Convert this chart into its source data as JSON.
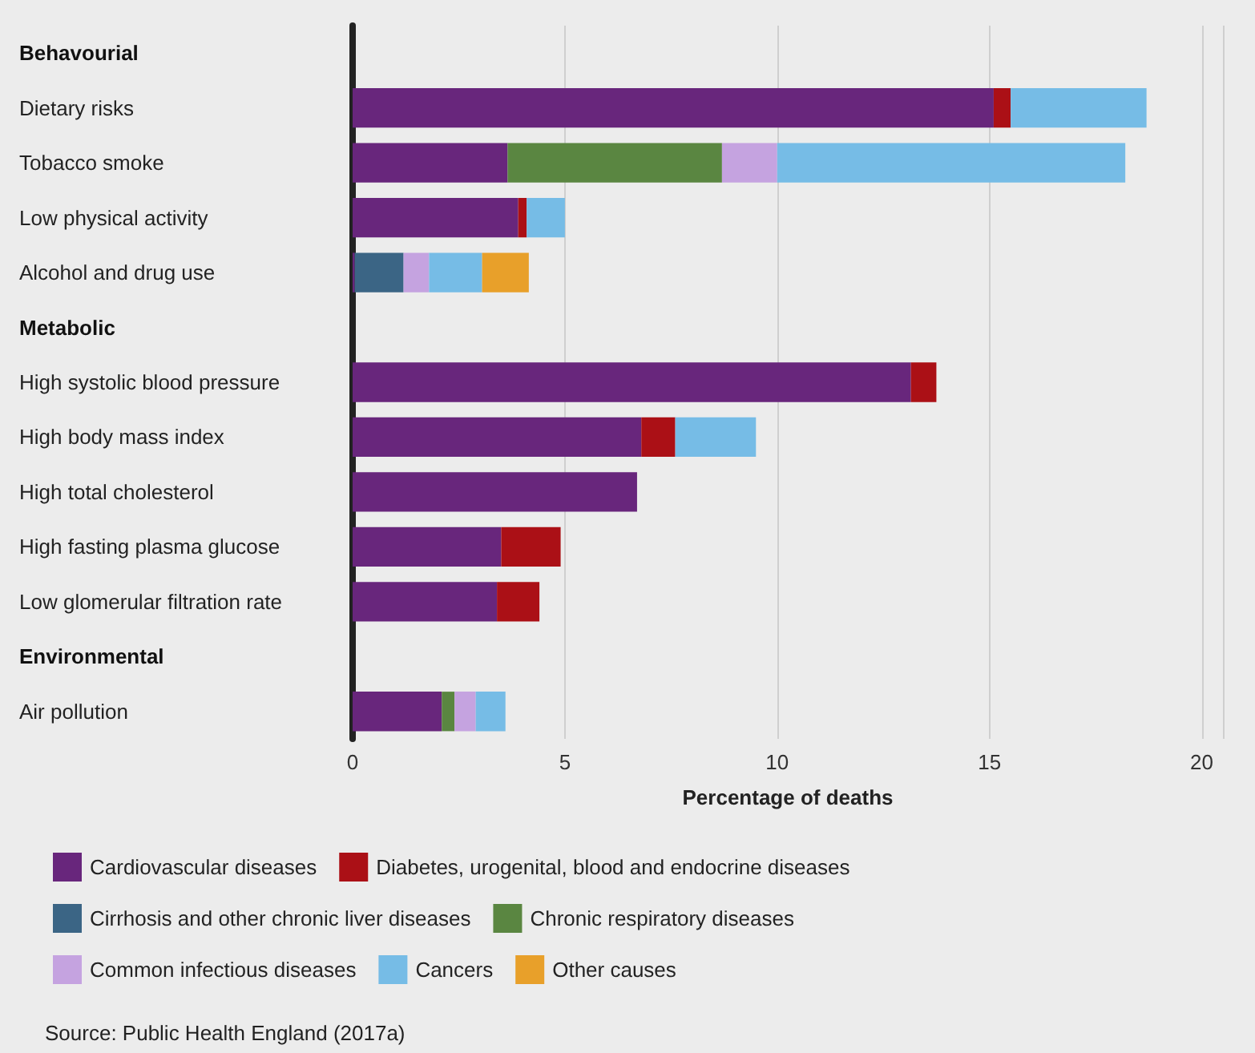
{
  "chart_data": {
    "type": "bar",
    "orientation": "horizontal",
    "stacked": true,
    "xlabel": "Percentage of deaths",
    "categories": [
      "Behavourial",
      "Dietary risks",
      "Tobacco smoke",
      "Low physical activity",
      "Alcohol and drug use",
      "Metabolic",
      "High systolic blood pressure",
      "High body mass index",
      "High total cholesterol",
      "High fasting plasma glucose",
      "Low glomerular filtration rate",
      "Environmental",
      "Air pollution"
    ],
    "series": [
      {
        "name": "Cardiovascular diseases",
        "color": "#68267c",
        "values": [
          null,
          15.1,
          3.65,
          3.9,
          0.05,
          null,
          13.15,
          6.8,
          6.7,
          3.5,
          3.4,
          null,
          2.1
        ]
      },
      {
        "name": "Diabetes, urogenital, blood and endocrine diseases",
        "color": "#ab1016",
        "values": [
          null,
          0.4,
          null,
          0.2,
          null,
          null,
          0.6,
          0.8,
          null,
          1.4,
          1.0,
          null,
          null
        ]
      },
      {
        "name": "Cirrhosis and other chronic liver diseases",
        "color": "#3b6585",
        "values": [
          null,
          null,
          null,
          null,
          1.15,
          null,
          null,
          null,
          null,
          null,
          null,
          null,
          null
        ]
      },
      {
        "name": "Chronic respiratory diseases",
        "color": "#5a8641",
        "values": [
          null,
          null,
          5.05,
          null,
          null,
          null,
          null,
          null,
          null,
          null,
          null,
          null,
          0.3
        ]
      },
      {
        "name": "Common infectious diseases",
        "color": "#c5a3e0",
        "values": [
          null,
          null,
          1.3,
          null,
          0.6,
          null,
          null,
          null,
          null,
          null,
          null,
          null,
          0.5
        ]
      },
      {
        "name": "Cancers",
        "color": "#76bce6",
        "values": [
          null,
          3.2,
          8.2,
          0.9,
          1.25,
          null,
          null,
          1.9,
          null,
          null,
          null,
          null,
          0.7
        ]
      },
      {
        "name": "Other causes",
        "color": "#e8a02a",
        "values": [
          null,
          null,
          null,
          null,
          1.1,
          null,
          null,
          null,
          null,
          null,
          null,
          null,
          null
        ]
      }
    ],
    "xlim": [
      0,
      20.5
    ],
    "xticks": [
      0,
      5,
      10,
      15,
      20
    ],
    "grid": "x",
    "legend": "bottom",
    "annotations": [
      "Source: Public Health England (2017a)"
    ]
  }
}
